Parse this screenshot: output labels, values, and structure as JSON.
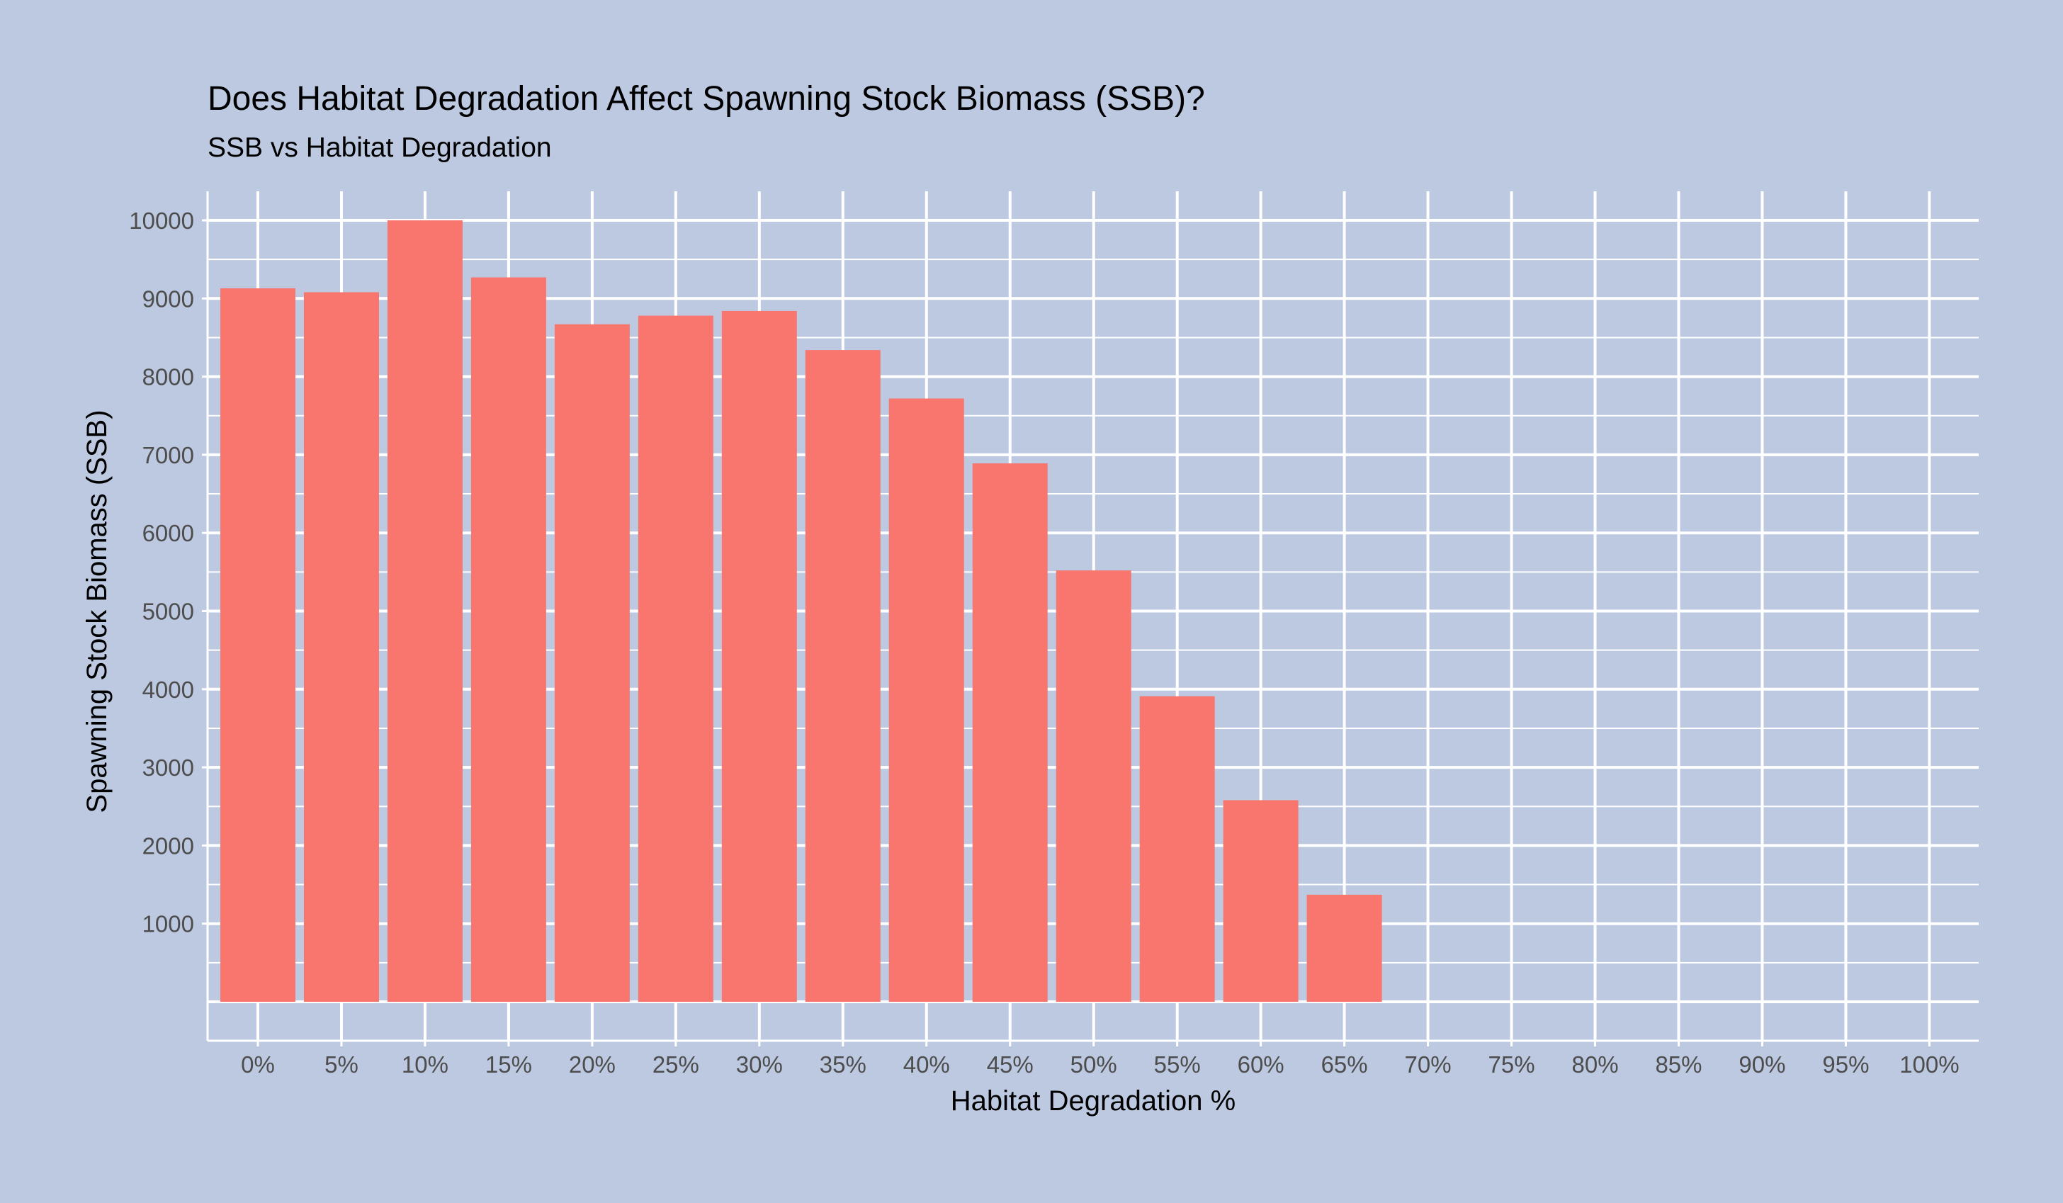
{
  "chart_data": {
    "type": "bar",
    "title": "Does Habitat Degradation Affect Spawning Stock Biomass (SSB)?",
    "subtitle": "SSB vs Habitat Degradation",
    "xlabel": "Habitat Degradation %",
    "ylabel": "Spawning Stock Biomass (SSB)",
    "categories": [
      "0%",
      "5%",
      "10%",
      "15%",
      "20%",
      "25%",
      "30%",
      "35%",
      "40%",
      "45%",
      "50%",
      "55%",
      "60%",
      "65%",
      "70%",
      "75%",
      "80%",
      "85%",
      "90%",
      "95%",
      "100%"
    ],
    "values": [
      9130,
      9080,
      10000,
      9270,
      8670,
      8780,
      8840,
      8340,
      7720,
      6890,
      5520,
      3910,
      2580,
      1370,
      null,
      null,
      null,
      null,
      null,
      null,
      null
    ],
    "yticks": [
      1000,
      2000,
      3000,
      4000,
      5000,
      6000,
      7000,
      8000,
      9000,
      10000
    ],
    "ylim": [
      -500,
      10500
    ],
    "grid": true,
    "colors": {
      "background": "#bcc9e1",
      "bar": "#f8766d",
      "grid": "#ffffff",
      "text": "#000000",
      "tick_text": "#4d4d4d"
    }
  }
}
